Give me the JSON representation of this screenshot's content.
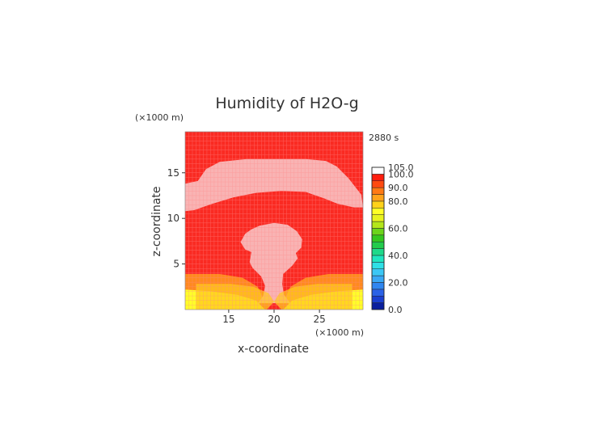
{
  "chart_data": {
    "type": "heatmap",
    "title": "Humidity of H2O-g",
    "time_label": "2880 s",
    "xlabel": "x-coordinate",
    "ylabel": "z-coordinate",
    "x_unit": "(×1000 m)",
    "y_unit": "(×1000 m)",
    "xlim": [
      10.2,
      29.8
    ],
    "ylim": [
      0,
      19.5
    ],
    "x_ticks": [
      15,
      20,
      25
    ],
    "y_ticks": [
      5,
      10,
      15
    ],
    "colorbar": {
      "levels": [
        0,
        5,
        10,
        15,
        20,
        25,
        30,
        35,
        40,
        45,
        50,
        55,
        60,
        65,
        70,
        75,
        80,
        85,
        90,
        95,
        100,
        105
      ],
      "colors": [
        "#0a1f9e",
        "#1a3fd0",
        "#2b62e6",
        "#2f86f0",
        "#39a8f5",
        "#3bc7f5",
        "#2ee0e6",
        "#1fe6c0",
        "#1ed98a",
        "#22cc4c",
        "#35c81e",
        "#6cd41a",
        "#b4e61a",
        "#e8f21e",
        "#ffff26",
        "#ffd21a",
        "#ffa31a",
        "#ff7a14",
        "#ff4a10",
        "#ff1e0e",
        "#ffffff"
      ],
      "labels": [
        {
          "value": 0,
          "text": "0.0"
        },
        {
          "value": 20,
          "text": "20.0"
        },
        {
          "value": 40,
          "text": "40.0"
        },
        {
          "value": 60,
          "text": "60.0"
        },
        {
          "value": 80,
          "text": "80.0"
        },
        {
          "value": 90,
          "text": "90.0"
        },
        {
          "value": 100,
          "text": "100.0"
        },
        {
          "value": 105,
          "text": "105.0"
        }
      ]
    },
    "field_colors": {
      "supersaturated": "#f9b3b3",
      "saturated": "#fa2a22",
      "high": "#ff8a1e",
      "mid": "#ffca1c",
      "low": "#ffff28",
      "grid": "#ff8a8a"
    },
    "regions": [
      {
        "name": "upper-stratiform-layer",
        "value": 101,
        "polygon": [
          [
            11.6,
            14.1
          ],
          [
            12.5,
            15.4
          ],
          [
            14.0,
            16.2
          ],
          [
            17.0,
            16.5
          ],
          [
            20.0,
            16.5
          ],
          [
            23.5,
            16.5
          ],
          [
            25.7,
            16.3
          ],
          [
            26.9,
            15.7
          ],
          [
            28.2,
            14.4
          ],
          [
            29.6,
            12.6
          ],
          [
            29.8,
            11.2
          ],
          [
            28.8,
            11.2
          ],
          [
            27.0,
            11.6
          ],
          [
            25.5,
            12.2
          ],
          [
            23.5,
            12.9
          ],
          [
            20.8,
            13.0
          ],
          [
            18.0,
            12.8
          ],
          [
            15.5,
            12.3
          ],
          [
            13.2,
            11.6
          ],
          [
            11.2,
            10.9
          ],
          [
            10.2,
            10.8
          ],
          [
            10.2,
            13.8
          ]
        ]
      },
      {
        "name": "convective-column",
        "value": 101,
        "polygon": [
          [
            18.2,
            0.7
          ],
          [
            18.8,
            1.5
          ],
          [
            19.0,
            2.6
          ],
          [
            18.6,
            3.6
          ],
          [
            17.6,
            4.6
          ],
          [
            17.3,
            5.2
          ],
          [
            17.5,
            6.3
          ],
          [
            16.8,
            6.6
          ],
          [
            16.3,
            7.4
          ],
          [
            16.8,
            8.3
          ],
          [
            17.5,
            8.8
          ],
          [
            18.4,
            9.2
          ],
          [
            20.0,
            9.5
          ],
          [
            21.5,
            9.3
          ],
          [
            22.5,
            8.6
          ],
          [
            23.1,
            7.7
          ],
          [
            23.0,
            6.8
          ],
          [
            22.4,
            6.2
          ],
          [
            22.6,
            5.6
          ],
          [
            22.0,
            4.8
          ],
          [
            21.0,
            3.9
          ],
          [
            20.9,
            2.8
          ],
          [
            21.1,
            1.6
          ],
          [
            21.8,
            0.7
          ]
        ]
      },
      {
        "name": "lower-moist-band-left",
        "value": 88,
        "polygon": [
          [
            10.2,
            0
          ],
          [
            10.2,
            3.9
          ],
          [
            14.0,
            3.9
          ],
          [
            16.5,
            3.5
          ],
          [
            18.2,
            2.5
          ],
          [
            18.8,
            1.2
          ],
          [
            18.0,
            0
          ]
        ]
      },
      {
        "name": "lower-moist-band-right",
        "value": 88,
        "polygon": [
          [
            29.8,
            0
          ],
          [
            29.8,
            3.9
          ],
          [
            26.0,
            3.9
          ],
          [
            23.5,
            3.5
          ],
          [
            21.8,
            2.5
          ],
          [
            21.2,
            1.2
          ],
          [
            22.0,
            0
          ]
        ]
      },
      {
        "name": "surface-dry-layer-left",
        "value": 78,
        "polygon": [
          [
            10.2,
            0
          ],
          [
            10.2,
            2.2
          ],
          [
            13.0,
            2.0
          ],
          [
            16.0,
            1.6
          ],
          [
            18.0,
            1.0
          ],
          [
            19.0,
            0
          ]
        ]
      },
      {
        "name": "surface-dry-layer-right",
        "value": 78,
        "polygon": [
          [
            29.8,
            0
          ],
          [
            29.8,
            2.2
          ],
          [
            27.0,
            2.0
          ],
          [
            24.0,
            1.6
          ],
          [
            22.0,
            1.0
          ],
          [
            21.0,
            0
          ]
        ]
      }
    ]
  }
}
